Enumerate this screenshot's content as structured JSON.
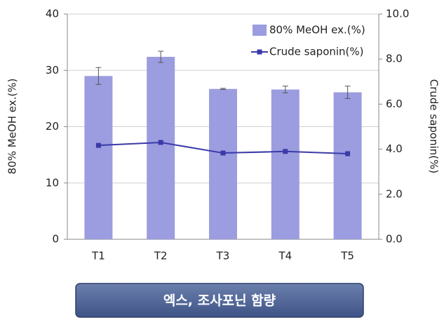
{
  "chart_data": {
    "type": "bar_line",
    "categories": [
      "T1",
      "T2",
      "T3",
      "T4",
      "T5"
    ],
    "series": [
      {
        "name": "80% MeOH ex.(%)",
        "color": "#9c9ce0",
        "values": [
          29.0,
          32.4,
          26.7,
          26.6,
          26.1
        ],
        "errors": [
          1.5,
          1.0,
          0.1,
          0.6,
          1.1
        ]
      },
      {
        "name": "Crude saponin(%)",
        "color": "#3a3aa8",
        "axis": "y2",
        "values": [
          4.17,
          4.3,
          3.83,
          3.9,
          3.8
        ]
      }
    ],
    "ylabel": "80% MeOH ex.(%)",
    "y2label": "Crude saponin(%)",
    "ylim": [
      0,
      40
    ],
    "yticks": [
      0,
      10,
      20,
      30,
      40
    ],
    "y2lim": [
      0,
      10
    ],
    "y2ticks": [
      {
        "value": 0,
        "label": "0.0"
      },
      {
        "value": 2,
        "label": "2.0"
      },
      {
        "value": 4,
        "label": "4.0"
      },
      {
        "value": 6,
        "label": "6.0"
      },
      {
        "value": 8,
        "label": "8.0"
      },
      {
        "value": 10,
        "label": "10.0"
      }
    ],
    "grid": true,
    "legend": "top-right"
  },
  "caption": "엑스, 조사포닌 함량"
}
